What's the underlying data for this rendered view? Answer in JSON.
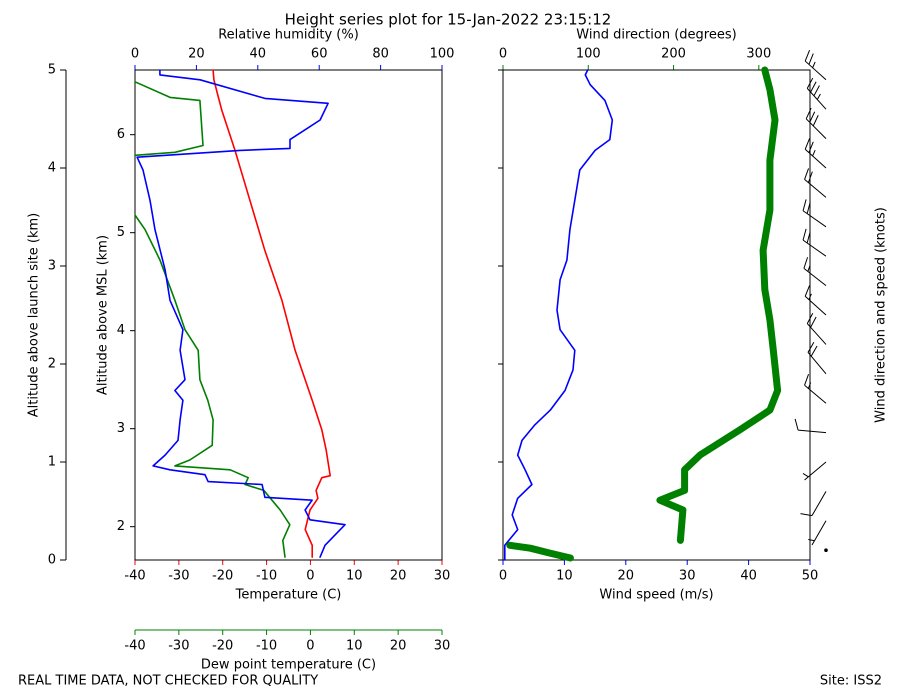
{
  "title": "Height series plot for 15-Jan-2022 23:15:12",
  "footer": {
    "left": "REAL TIME DATA, NOT CHECKED FOR QUALITY",
    "right": "Site: ISS2"
  },
  "chart_data": [
    {
      "type": "profile",
      "ylabel": "Altitude above launch site (km)",
      "ylim": [
        0,
        5
      ],
      "yticks": [
        0,
        1,
        2,
        3,
        4,
        5
      ],
      "y2label": "Altitude above MSL (km)",
      "y2lim": [
        1.66,
        6.66
      ],
      "y2ticks": [
        2,
        3,
        4,
        5,
        6
      ],
      "axes": {
        "x": {
          "label": "Temperature (C)",
          "lim": [
            -40,
            30
          ],
          "ticks": [
            -40,
            -30,
            -20,
            -10,
            0,
            10,
            20,
            30
          ],
          "color": "#ff0000"
        },
        "x2": {
          "label": "Relative humidity (%)",
          "lim": [
            0,
            100
          ],
          "ticks": [
            0,
            20,
            40,
            60,
            80,
            100
          ],
          "color": "#0000ff"
        },
        "x3": {
          "label": "Dew point temperature (C)",
          "lim": [
            -40,
            30
          ],
          "ticks": [
            -40,
            -30,
            -20,
            -10,
            0,
            10,
            20,
            30
          ],
          "color": "#008000"
        }
      },
      "series": [
        {
          "axis": "x",
          "color": "#ff0000",
          "heights": [
            0.03,
            0.15,
            0.31,
            0.51,
            0.63,
            0.71,
            0.84,
            0.86,
            1.12,
            1.33,
            1.63,
            2.14,
            2.65,
            3.16,
            3.67,
            4.18,
            4.59,
            4.74,
            4.9,
            5.0
          ],
          "values": [
            0.4,
            0.4,
            -1.2,
            -0.1,
            1.7,
            1.3,
            2.6,
            4.5,
            3.6,
            2.6,
            0.4,
            -3.5,
            -6.5,
            -10.4,
            -13.8,
            -17.2,
            -20.2,
            -21.1,
            -22.0,
            -22.2
          ]
        },
        {
          "axis": "x3",
          "color": "#008000",
          "heights": [
            0.03,
            0.2,
            0.36,
            0.51,
            0.66,
            0.71,
            0.77,
            0.84,
            0.92,
            0.96,
            1.02,
            1.17,
            1.43,
            1.63,
            1.84,
            2.14,
            2.35,
            2.65,
            3.06,
            3.37,
            3.52,
            null,
            4.13,
            4.16,
            4.23,
            4.69,
            4.72,
            4.88
          ],
          "values": [
            -5.8,
            -6.3,
            -4.7,
            -6.9,
            -9.7,
            -10.6,
            -14.9,
            -14.2,
            -18.3,
            -30.9,
            -27.5,
            -22.4,
            -22.2,
            -23.4,
            -25.2,
            -25.6,
            -28.6,
            -30.9,
            -34.3,
            -37.7,
            -40,
            null,
            -40,
            -30.9,
            -24.5,
            -25.2,
            -32,
            -40
          ]
        },
        {
          "axis": "x2",
          "color": "#0000ff",
          "heights": [
            0.03,
            0.15,
            0.36,
            0.41,
            0.51,
            0.61,
            0.64,
            0.77,
            0.8,
            0.87,
            0.92,
            0.96,
            1.07,
            1.22,
            1.43,
            1.63,
            1.73,
            1.84,
            2.14,
            2.35,
            2.65,
            2.96,
            3.37,
            3.67,
            3.98,
            4.11,
            4.18,
            4.2,
            4.29,
            4.49,
            4.66,
            4.71,
            4.9,
            4.95,
            5.0
          ],
          "values": [
            60.3,
            61.9,
            68.4,
            57,
            55.4,
            57.7,
            42.3,
            41.4,
            23.8,
            22.8,
            11.4,
            5.9,
            9.8,
            14,
            14.7,
            15.6,
            13,
            16.3,
            14.7,
            15.6,
            11.4,
            9.8,
            6.5,
            4.9,
            2.6,
            0.7,
            34.2,
            50.5,
            50.5,
            60.3,
            62.9,
            42.3,
            21.2,
            8.1,
            8.1
          ]
        }
      ]
    },
    {
      "type": "wind",
      "ylim": [
        0,
        5
      ],
      "yticks": [
        0,
        1,
        2,
        3,
        4,
        5
      ],
      "barb_label": "Wind direction and speed (knots)",
      "axes": {
        "x": {
          "label": "Wind speed (m/s)",
          "lim": [
            0,
            50
          ],
          "ticks": [
            0,
            10,
            20,
            30,
            40,
            50
          ],
          "color": "#0000ff"
        },
        "x2": {
          "label": "Wind direction (degrees)",
          "lim": [
            0,
            360
          ],
          "ticks": [
            0,
            100,
            200,
            300
          ],
          "color": "#008000"
        }
      },
      "series": [
        {
          "axis": "x",
          "color": "#0000ff",
          "width": 1.6,
          "heights": [
            0,
            0.15,
            0.31,
            0.46,
            0.63,
            0.77,
            0.92,
            1.07,
            1.22,
            1.38,
            1.53,
            1.73,
            1.94,
            2.14,
            2.35,
            2.55,
            2.86,
            3.06,
            3.37,
            3.67,
            3.98,
            4.18,
            4.29,
            4.49,
            4.69,
            4.85,
            4.95,
            5.0
          ],
          "values": [
            0.3,
            0.3,
            2.4,
            1.5,
            2.4,
            4.7,
            3.6,
            2.4,
            3.1,
            5.2,
            7.7,
            10.1,
            11.4,
            11.7,
            9.3,
            8.8,
            9.3,
            10.4,
            10.9,
            11.7,
            12.5,
            15,
            17.4,
            17.8,
            16.6,
            14.2,
            13.4,
            13.8
          ]
        },
        {
          "axis": "x2",
          "color": "#008000",
          "width": 7,
          "heights": [
            0.02,
            0.07,
            0.12,
            0.15,
            null,
            0.2,
            0.51,
            0.61,
            0.71,
            0.92,
            1.07,
            1.33,
            1.53,
            1.73,
            2.14,
            2.45,
            2.76,
            3.16,
            3.57,
            4.08,
            4.49,
            4.8,
            5.0
          ],
          "values": [
            79,
            55,
            32,
            8,
            null,
            208,
            211,
            184,
            213,
            213,
            231,
            278,
            313,
            322,
            317,
            313,
            307,
            305,
            313,
            313,
            319,
            313,
            307
          ]
        }
      ],
      "barbs": {
        "heights": [
          0.1,
          0.4,
          0.7,
          1.0,
          1.3,
          1.6,
          1.9,
          2.2,
          2.5,
          2.8,
          3.1,
          3.4,
          3.7,
          4.0,
          4.3,
          4.6,
          4.9
        ],
        "direction": [
          40,
          210,
          210,
          230,
          275,
          310,
          320,
          318,
          312,
          308,
          305,
          305,
          310,
          312,
          315,
          318,
          312
        ],
        "speed": [
          0.5,
          1.5,
          4,
          3,
          5,
          8,
          11,
          11.5,
          9,
          9,
          10,
          10.5,
          11,
          12.5,
          16,
          17,
          14
        ]
      }
    }
  ]
}
